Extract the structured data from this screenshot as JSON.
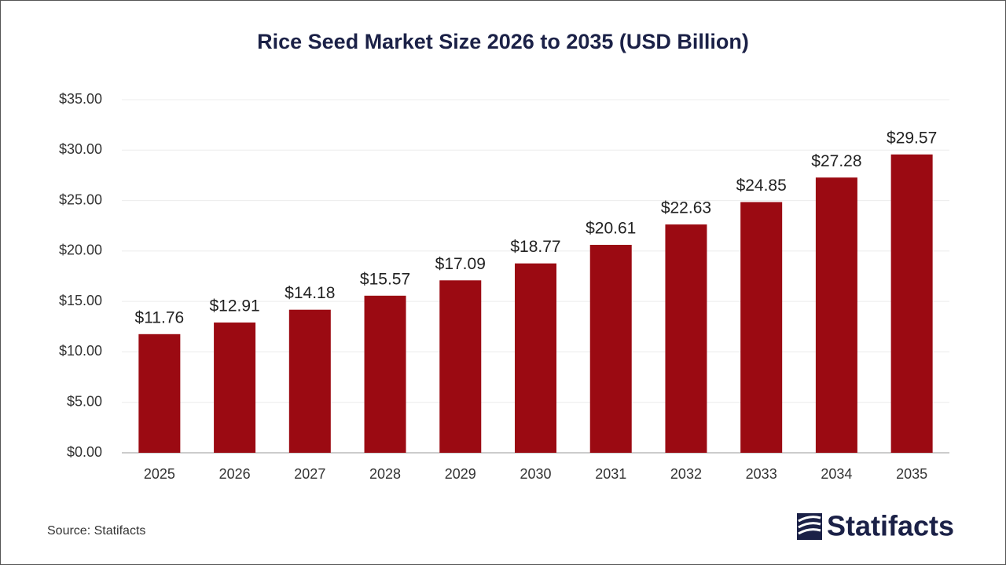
{
  "chart_data": {
    "type": "bar",
    "title": "Rice Seed Market Size 2026 to 2035 (USD Billion)",
    "categories": [
      "2025",
      "2026",
      "2027",
      "2028",
      "2029",
      "2030",
      "2031",
      "2032",
      "2033",
      "2034",
      "2035"
    ],
    "values": [
      11.76,
      12.91,
      14.18,
      15.57,
      17.09,
      18.77,
      20.61,
      22.63,
      24.85,
      27.28,
      29.57
    ],
    "value_labels": [
      "$11.76",
      "$12.91",
      "$14.18",
      "$15.57",
      "$17.09",
      "$18.77",
      "$20.61",
      "$22.63",
      "$24.85",
      "$27.28",
      "$29.57"
    ],
    "color": "#9b0a12",
    "ylim": [
      0,
      35
    ],
    "yticks": [
      {
        "value": 0,
        "label": "$0.00"
      },
      {
        "value": 5,
        "label": "$5.00"
      },
      {
        "value": 10,
        "label": "$10.00"
      },
      {
        "value": 15,
        "label": "$15.00"
      },
      {
        "value": 20,
        "label": "$20.00"
      },
      {
        "value": 25,
        "label": "$25.00"
      },
      {
        "value": 30,
        "label": "$30.00"
      },
      {
        "value": 35,
        "label": "$35.00"
      }
    ],
    "grid": true,
    "source": "Source: Statifacts",
    "logo": "Statifacts"
  }
}
